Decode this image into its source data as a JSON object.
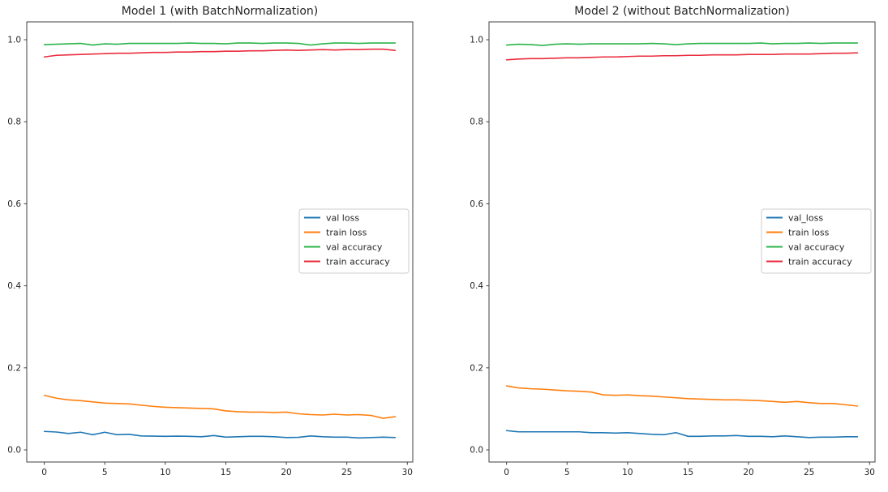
{
  "figure": {
    "background": "#ffffff",
    "spine_color": "#404040",
    "tick_color": "#404040",
    "text_color": "#262626",
    "legend_border_color": "#cccccc",
    "legend_background": "#ffffff"
  },
  "chart_data": [
    {
      "type": "line",
      "title": "Model 1 (with BatchNormalization)",
      "xlabel": "",
      "ylabel": "",
      "grid": false,
      "legend_position": "center right",
      "xlim": [
        -1.45,
        30.45
      ],
      "ylim": [
        -0.0296,
        1.0435
      ],
      "xticks": [
        0,
        5,
        10,
        15,
        20,
        25,
        30
      ],
      "xtick_labels": [
        "0",
        "5",
        "10",
        "15",
        "20",
        "25",
        "30"
      ],
      "yticks": [
        0.0,
        0.2,
        0.4,
        0.6,
        0.8,
        1.0
      ],
      "ytick_labels": [
        "0.0",
        "0.2",
        "0.4",
        "0.6",
        "0.8",
        "1.0"
      ],
      "x": [
        0,
        1,
        2,
        3,
        4,
        5,
        6,
        7,
        8,
        9,
        10,
        11,
        12,
        13,
        14,
        15,
        16,
        17,
        18,
        19,
        20,
        21,
        22,
        23,
        24,
        25,
        26,
        27,
        28,
        29
      ],
      "series": [
        {
          "name": "val loss",
          "color": "#1f77b4",
          "values": [
            0.045,
            0.0435,
            0.04,
            0.043,
            0.037,
            0.043,
            0.037,
            0.038,
            0.034,
            0.0335,
            0.033,
            0.0335,
            0.033,
            0.032,
            0.035,
            0.031,
            0.032,
            0.033,
            0.033,
            0.032,
            0.03,
            0.0305,
            0.034,
            0.032,
            0.031,
            0.031,
            0.029,
            0.03,
            0.031,
            0.03
          ]
        },
        {
          "name": "train loss",
          "color": "#ff7f0e",
          "values": [
            0.133,
            0.126,
            0.122,
            0.12,
            0.117,
            0.114,
            0.113,
            0.112,
            0.109,
            0.106,
            0.104,
            0.103,
            0.102,
            0.101,
            0.1,
            0.095,
            0.093,
            0.092,
            0.092,
            0.091,
            0.092,
            0.088,
            0.086,
            0.085,
            0.087,
            0.085,
            0.086,
            0.084,
            0.077,
            0.081
          ]
        },
        {
          "name": "val accuracy",
          "color": "#2bb44a",
          "values": [
            0.988,
            0.989,
            0.99,
            0.991,
            0.987,
            0.99,
            0.989,
            0.991,
            0.991,
            0.991,
            0.991,
            0.991,
            0.992,
            0.991,
            0.991,
            0.99,
            0.992,
            0.992,
            0.991,
            0.992,
            0.992,
            0.991,
            0.987,
            0.99,
            0.992,
            0.992,
            0.991,
            0.992,
            0.992,
            0.992
          ]
        },
        {
          "name": "train accuracy",
          "color": "#ea2c3e",
          "values": [
            0.958,
            0.962,
            0.963,
            0.964,
            0.965,
            0.966,
            0.967,
            0.967,
            0.968,
            0.969,
            0.969,
            0.97,
            0.97,
            0.971,
            0.971,
            0.972,
            0.972,
            0.973,
            0.973,
            0.974,
            0.975,
            0.974,
            0.975,
            0.976,
            0.975,
            0.976,
            0.976,
            0.977,
            0.977,
            0.974
          ]
        }
      ]
    },
    {
      "type": "line",
      "title": "Model 2 (without BatchNormalization)",
      "xlabel": "",
      "ylabel": "",
      "grid": false,
      "legend_position": "center right",
      "xlim": [
        -1.45,
        30.45
      ],
      "ylim": [
        -0.0296,
        1.0435
      ],
      "xticks": [
        0,
        5,
        10,
        15,
        20,
        25,
        30
      ],
      "xtick_labels": [
        "0",
        "5",
        "10",
        "15",
        "20",
        "25",
        "30"
      ],
      "yticks": [
        0.0,
        0.2,
        0.4,
        0.6,
        0.8,
        1.0
      ],
      "ytick_labels": [
        "0.0",
        "0.2",
        "0.4",
        "0.6",
        "0.8",
        "1.0"
      ],
      "x": [
        0,
        1,
        2,
        3,
        4,
        5,
        6,
        7,
        8,
        9,
        10,
        11,
        12,
        13,
        14,
        15,
        16,
        17,
        18,
        19,
        20,
        21,
        22,
        23,
        24,
        25,
        26,
        27,
        28,
        29
      ],
      "series": [
        {
          "name": "val_loss",
          "color": "#1f77b4",
          "values": [
            0.047,
            0.044,
            0.044,
            0.044,
            0.044,
            0.044,
            0.044,
            0.042,
            0.042,
            0.041,
            0.042,
            0.04,
            0.038,
            0.037,
            0.042,
            0.033,
            0.033,
            0.034,
            0.034,
            0.035,
            0.033,
            0.033,
            0.032,
            0.034,
            0.032,
            0.03,
            0.031,
            0.031,
            0.032,
            0.032
          ]
        },
        {
          "name": "train loss",
          "color": "#ff7f0e",
          "values": [
            0.156,
            0.151,
            0.149,
            0.148,
            0.146,
            0.144,
            0.143,
            0.141,
            0.134,
            0.133,
            0.134,
            0.132,
            0.131,
            0.129,
            0.127,
            0.125,
            0.124,
            0.123,
            0.122,
            0.122,
            0.121,
            0.12,
            0.118,
            0.116,
            0.118,
            0.115,
            0.113,
            0.113,
            0.11,
            0.107
          ]
        },
        {
          "name": "val accuracy",
          "color": "#2bb44a",
          "values": [
            0.987,
            0.989,
            0.988,
            0.986,
            0.989,
            0.99,
            0.989,
            0.99,
            0.99,
            0.99,
            0.99,
            0.99,
            0.991,
            0.99,
            0.988,
            0.99,
            0.991,
            0.991,
            0.991,
            0.991,
            0.991,
            0.992,
            0.99,
            0.991,
            0.991,
            0.992,
            0.991,
            0.992,
            0.992,
            0.992
          ]
        },
        {
          "name": "train accuracy",
          "color": "#ea2c3e",
          "values": [
            0.951,
            0.953,
            0.954,
            0.954,
            0.955,
            0.956,
            0.956,
            0.957,
            0.958,
            0.958,
            0.959,
            0.96,
            0.96,
            0.961,
            0.961,
            0.962,
            0.962,
            0.963,
            0.963,
            0.963,
            0.964,
            0.964,
            0.964,
            0.965,
            0.965,
            0.965,
            0.966,
            0.967,
            0.967,
            0.968
          ]
        }
      ]
    }
  ]
}
